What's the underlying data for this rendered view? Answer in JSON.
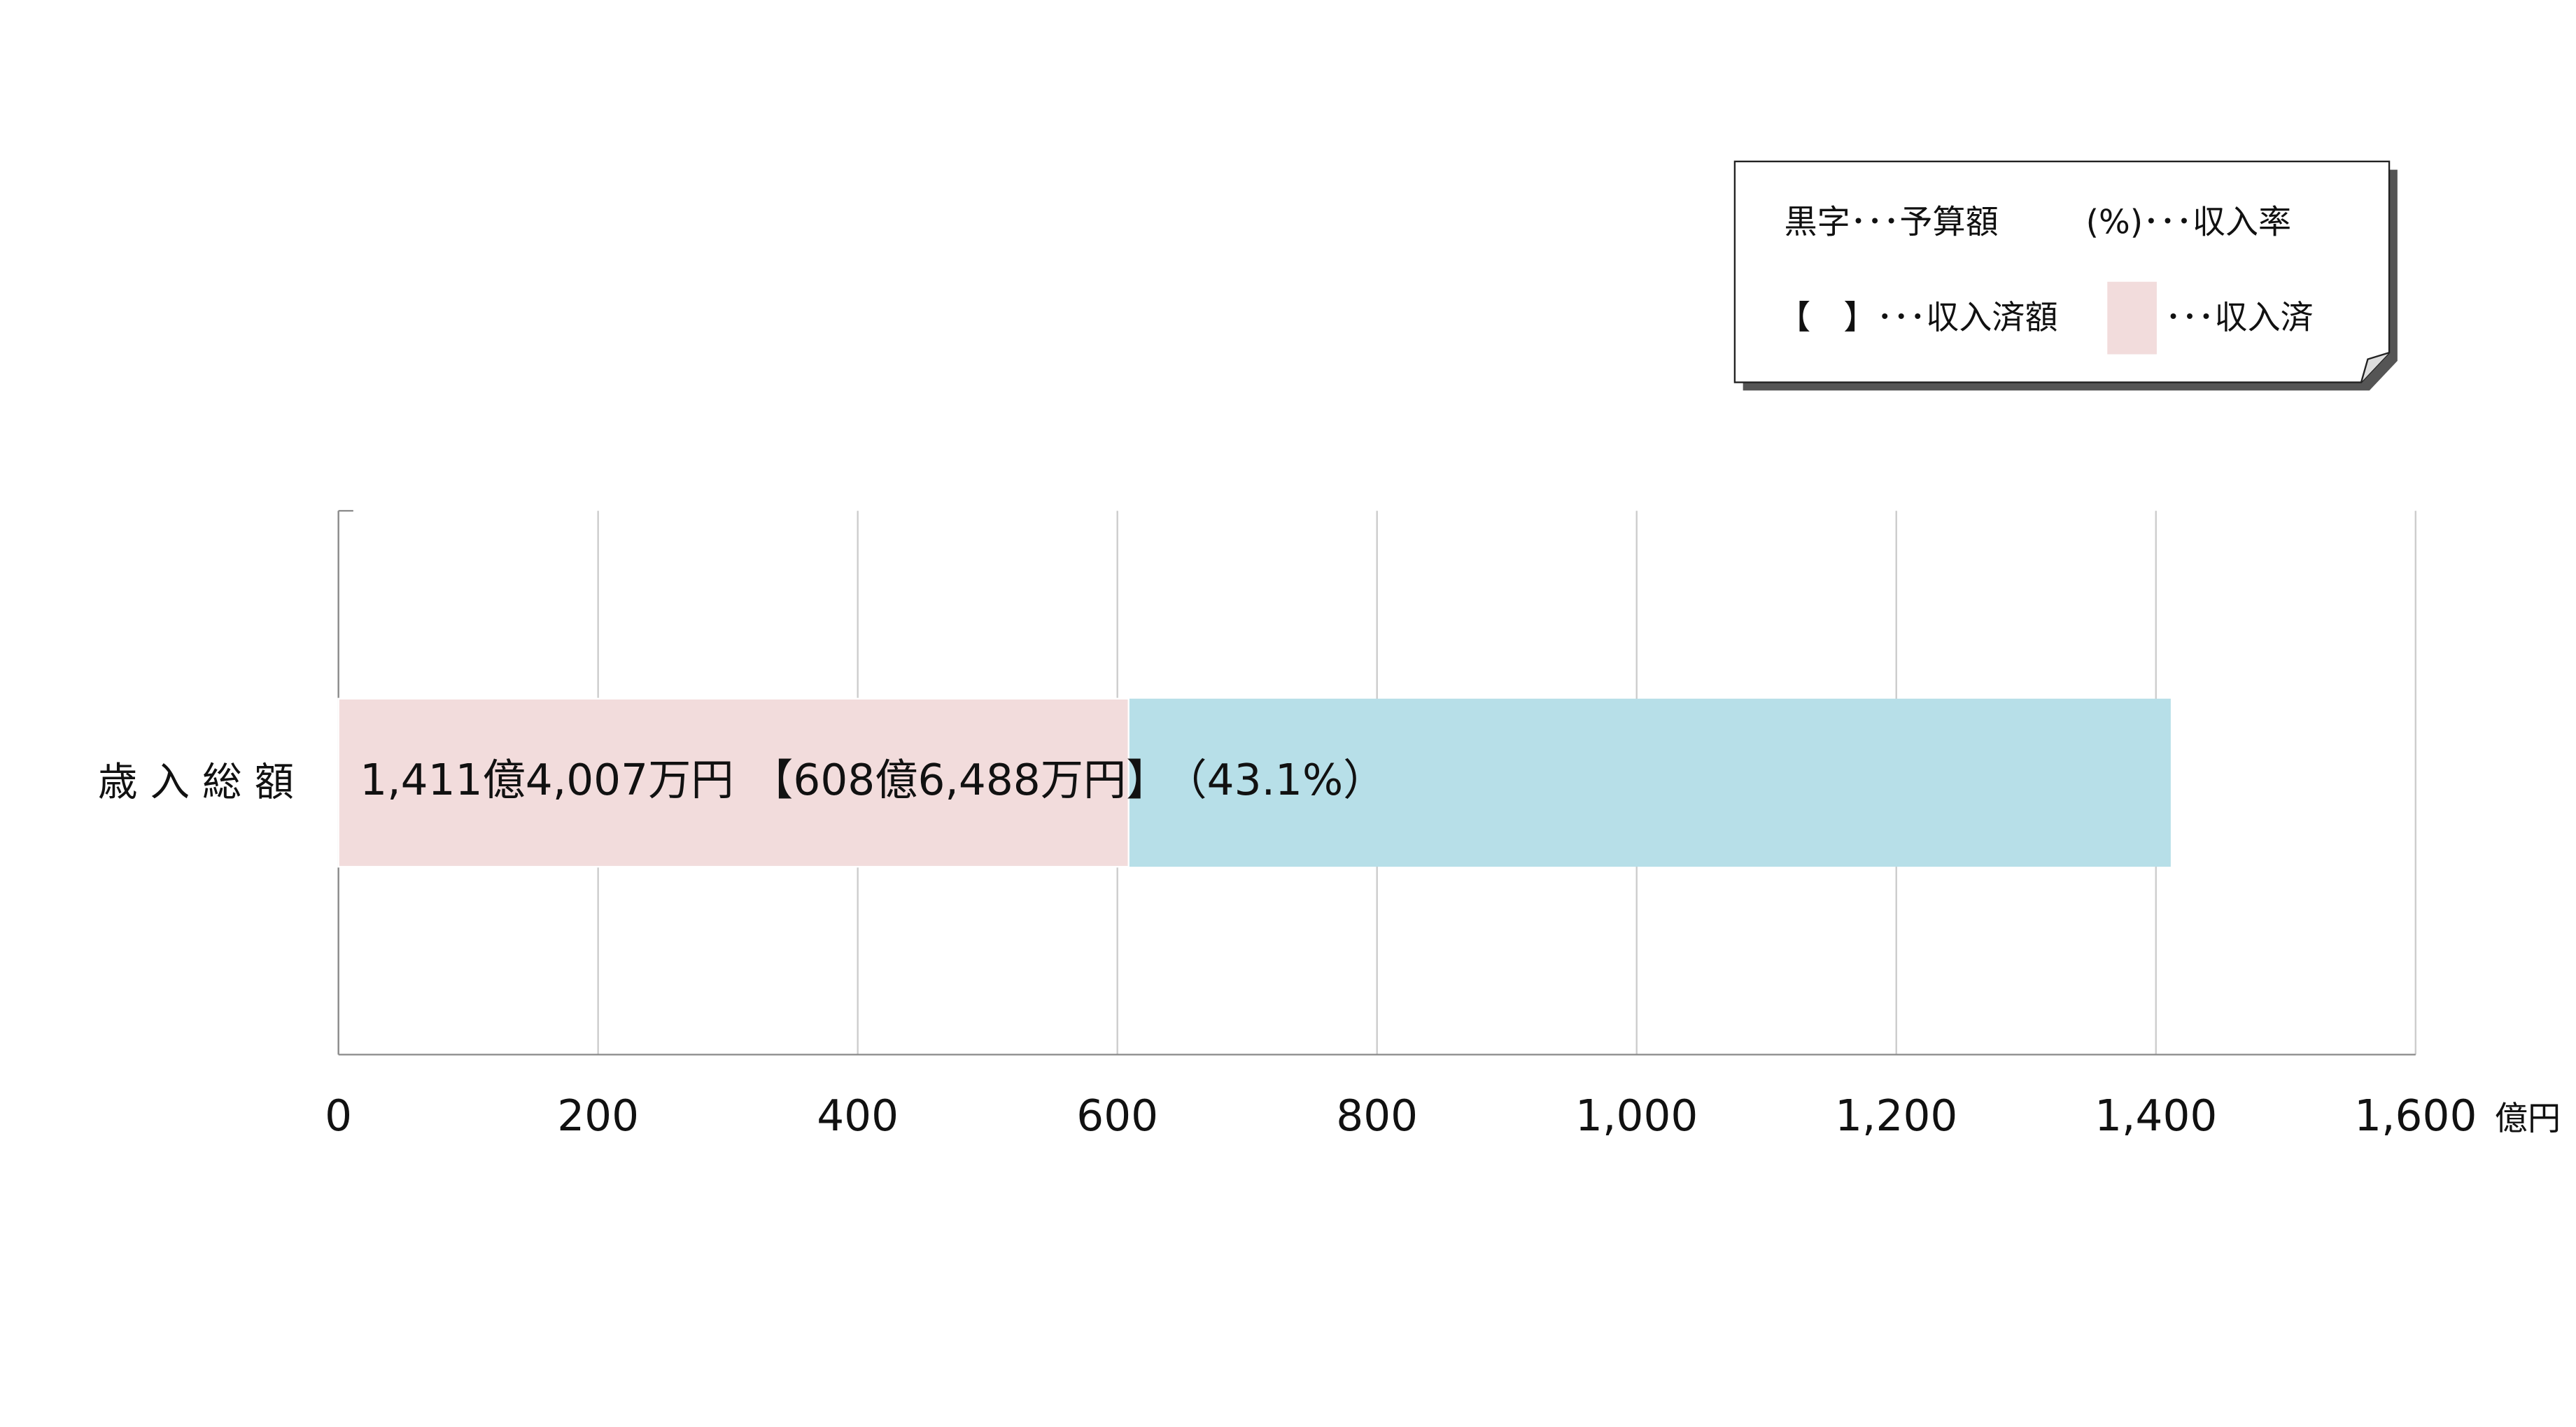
{
  "chart_data": {
    "type": "hbar",
    "categories": [
      "歳 入 総 額"
    ],
    "overlay": true,
    "series": [
      {
        "color": "#b7dfe8",
        "values": [
          1411.4007
        ],
        "value_labels": [
          "1,411億4,007万円"
        ]
      },
      {
        "color": "#f2dcdc",
        "values": [
          608.6488
        ],
        "value_labels": [
          "【608億6,488万円】"
        ]
      }
    ],
    "annotations": [
      "（43.1%）"
    ],
    "x_unit": "億円",
    "xlim": [
      0,
      1600
    ],
    "xticks": [
      0,
      200,
      400,
      600,
      800,
      {
        "value": 1000,
        "label": "1,000"
      },
      {
        "value": 1200,
        "label": "1,200"
      },
      {
        "value": 1400,
        "label": "1,400"
      },
      {
        "value": 1600,
        "label": "1,600"
      }
    ],
    "grid": true,
    "legend": [
      "黒字･･･予算額",
      "(%)･･･収入率",
      "【　】･･･収入済額",
      "･･･収入済"
    ]
  }
}
